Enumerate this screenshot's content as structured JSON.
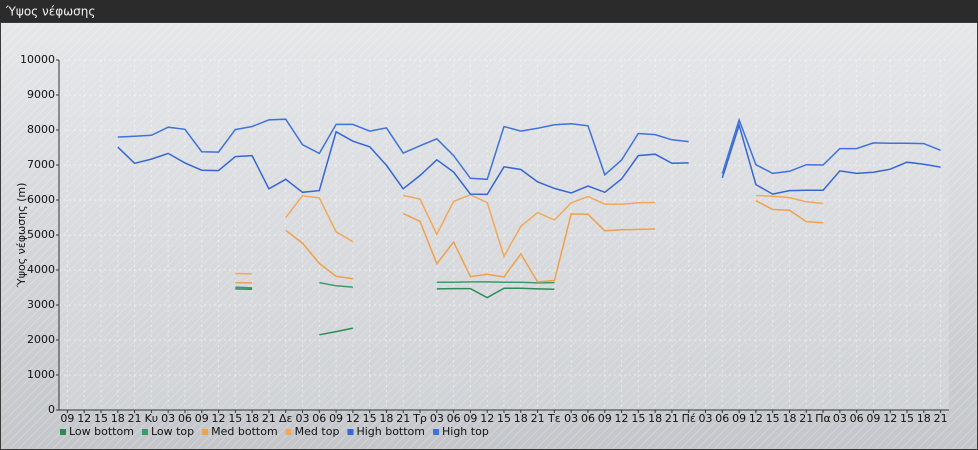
{
  "chart_data": {
    "type": "line",
    "title": "Ύψος νέφωσης",
    "y_label": "Ύψος νέφωσης (m)",
    "categories": [
      "09",
      "12",
      "15",
      "18",
      "21",
      "Κυ",
      "03",
      "06",
      "09",
      "12",
      "15",
      "18",
      "21",
      "Δε",
      "03",
      "06",
      "09",
      "12",
      "15",
      "18",
      "21",
      "Τρ",
      "03",
      "06",
      "09",
      "12",
      "15",
      "18",
      "21",
      "Τε",
      "03",
      "06",
      "09",
      "12",
      "15",
      "18",
      "21",
      "Πέ",
      "03",
      "06",
      "09",
      "12",
      "15",
      "18",
      "21",
      "Πα",
      "03",
      "06",
      "09",
      "12",
      "15",
      "18",
      "21"
    ],
    "ylim": [
      0,
      10000
    ],
    "yticks": [
      0,
      1000,
      2000,
      3000,
      4000,
      5000,
      6000,
      7000,
      8000,
      9000,
      10000
    ],
    "grid": true,
    "series": [
      {
        "name": "Low bottom",
        "color": "#2e8b57",
        "values": [
          null,
          null,
          null,
          null,
          null,
          null,
          null,
          null,
          null,
          null,
          3460,
          3450,
          null,
          null,
          null,
          2150,
          2240,
          2340,
          null,
          null,
          null,
          null,
          3460,
          3470,
          3470,
          3210,
          3480,
          3480,
          3460,
          3450,
          null,
          null,
          null,
          null,
          null,
          null,
          null,
          null,
          null,
          null,
          null,
          null,
          null,
          null,
          null,
          null,
          null,
          null,
          null,
          null,
          null,
          null,
          null
        ]
      },
      {
        "name": "Low top",
        "color": "#3c9a6a",
        "values": [
          null,
          null,
          null,
          null,
          null,
          null,
          null,
          null,
          null,
          null,
          3510,
          3490,
          null,
          null,
          null,
          3640,
          3550,
          3510,
          null,
          null,
          null,
          null,
          3650,
          3650,
          3660,
          3660,
          3650,
          3650,
          3630,
          3640,
          null,
          null,
          null,
          null,
          null,
          null,
          null,
          null,
          null,
          null,
          null,
          null,
          null,
          null,
          null,
          null,
          null,
          null,
          null,
          null,
          null,
          null,
          null
        ]
      },
      {
        "name": "Med bottom",
        "color": "#f0a04b",
        "values": [
          null,
          null,
          null,
          null,
          null,
          null,
          null,
          null,
          null,
          null,
          3640,
          3630,
          null,
          5130,
          4770,
          4190,
          3820,
          3750,
          null,
          null,
          5610,
          5390,
          4180,
          4800,
          3810,
          3880,
          3800,
          4460,
          3660,
          3700,
          5600,
          5590,
          5120,
          5150,
          5160,
          5170,
          null,
          null,
          null,
          null,
          null,
          5980,
          5730,
          5710,
          5380,
          5350,
          null,
          null,
          null,
          null,
          null,
          null,
          null
        ]
      },
      {
        "name": "Med top",
        "color": "#f2a85a",
        "values": [
          null,
          null,
          null,
          null,
          null,
          null,
          null,
          null,
          null,
          null,
          3900,
          3890,
          null,
          5500,
          6120,
          6060,
          5090,
          4810,
          null,
          null,
          6130,
          6030,
          5020,
          5960,
          6150,
          5930,
          4390,
          5250,
          5640,
          5430,
          5920,
          6100,
          5880,
          5880,
          5920,
          5930,
          null,
          null,
          null,
          null,
          null,
          6130,
          6110,
          6070,
          5950,
          5900,
          null,
          null,
          null,
          null,
          null,
          null,
          null
        ]
      },
      {
        "name": "High bottom",
        "color": "#3566d4",
        "values": [
          null,
          null,
          null,
          7510,
          7050,
          7170,
          7330,
          7060,
          6850,
          6840,
          7240,
          7270,
          6320,
          6590,
          6220,
          6270,
          7950,
          7680,
          7520,
          6990,
          6320,
          6700,
          7150,
          6800,
          6170,
          6160,
          6950,
          6870,
          6520,
          6330,
          6200,
          6400,
          6220,
          6600,
          7270,
          7310,
          7050,
          7060,
          null,
          6630,
          8140,
          6440,
          6170,
          6270,
          6280,
          6280,
          6830,
          6760,
          6790,
          6880,
          7080,
          7020,
          6940
        ]
      },
      {
        "name": "High top",
        "color": "#3f72dc",
        "values": [
          null,
          null,
          null,
          7800,
          7820,
          7850,
          8080,
          8020,
          7380,
          7370,
          8010,
          8100,
          8290,
          8310,
          7580,
          7330,
          8160,
          8160,
          7970,
          8060,
          7340,
          7550,
          7750,
          7270,
          6620,
          6590,
          8100,
          7970,
          8050,
          8150,
          8180,
          8120,
          6720,
          7140,
          7900,
          7870,
          7720,
          7670,
          null,
          6750,
          8290,
          7010,
          6760,
          6820,
          7010,
          7000,
          7470,
          7470,
          7630,
          7620,
          7620,
          7610,
          7420
        ]
      }
    ]
  }
}
